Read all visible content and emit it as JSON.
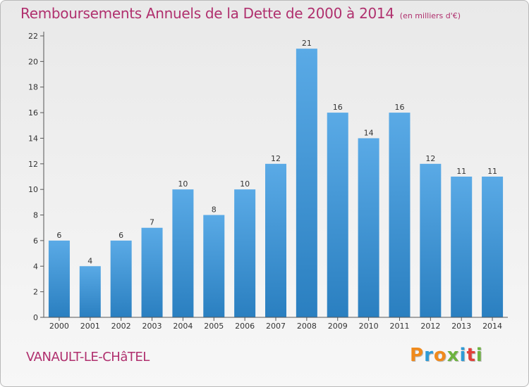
{
  "header": {
    "title": "Remboursements Annuels de la Dette de 2000 à 2014",
    "subtitle": "(en milliers d'€)"
  },
  "footer": {
    "commune": "VANAULT-LE-CHâTEL",
    "brand": "Proxiti"
  },
  "colors": {
    "bar_top": "#5aaae6",
    "bar_bottom": "#2a7fc0",
    "title": "#b0306e",
    "brand_letters": [
      "#f08a1c",
      "#2e9bd6",
      "#f08a1c",
      "#6db33f",
      "#2e9bd6",
      "#e2403a",
      "#6db33f"
    ]
  },
  "chart_data": {
    "type": "bar",
    "categories": [
      "2000",
      "2001",
      "2002",
      "2003",
      "2004",
      "2005",
      "2006",
      "2007",
      "2008",
      "2009",
      "2010",
      "2011",
      "2012",
      "2013",
      "2014"
    ],
    "values": [
      6,
      4,
      6,
      7,
      10,
      8,
      10,
      12,
      21,
      16,
      14,
      16,
      12,
      11,
      11
    ],
    "title": "Remboursements Annuels de la Dette de 2000 à 2014",
    "subtitle": "(en milliers d'€)",
    "xlabel": "",
    "ylabel": "",
    "ylim": [
      0,
      22
    ],
    "yticks": [
      0,
      2,
      4,
      6,
      8,
      10,
      12,
      14,
      16,
      18,
      20,
      22
    ],
    "grid": false,
    "data_labels": true
  }
}
